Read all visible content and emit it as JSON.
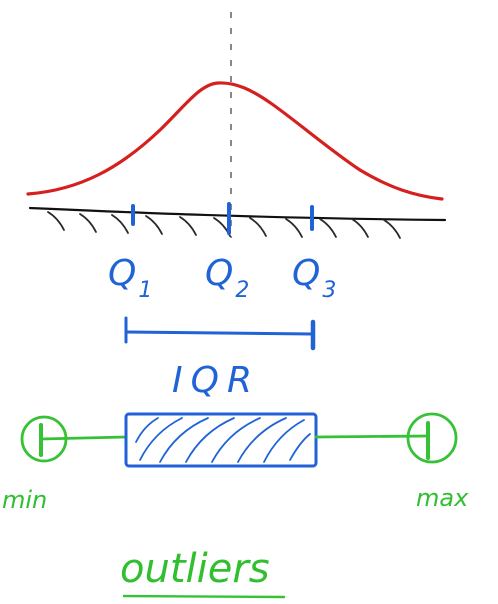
{
  "colors": {
    "curve": "#d61f1f",
    "axis": "#111111",
    "hatch": "#2a2a2a",
    "quartiles": "#1f63d6",
    "boxplot": "#35c235",
    "box": "#1f63d6"
  },
  "quartiles": [
    {
      "main": "Q",
      "sub": "1"
    },
    {
      "main": "Q",
      "sub": "2"
    },
    {
      "main": "Q",
      "sub": "3"
    }
  ],
  "iqr_label": "IQR",
  "min_label": "min",
  "max_label": "max",
  "outliers_label": "outliers"
}
